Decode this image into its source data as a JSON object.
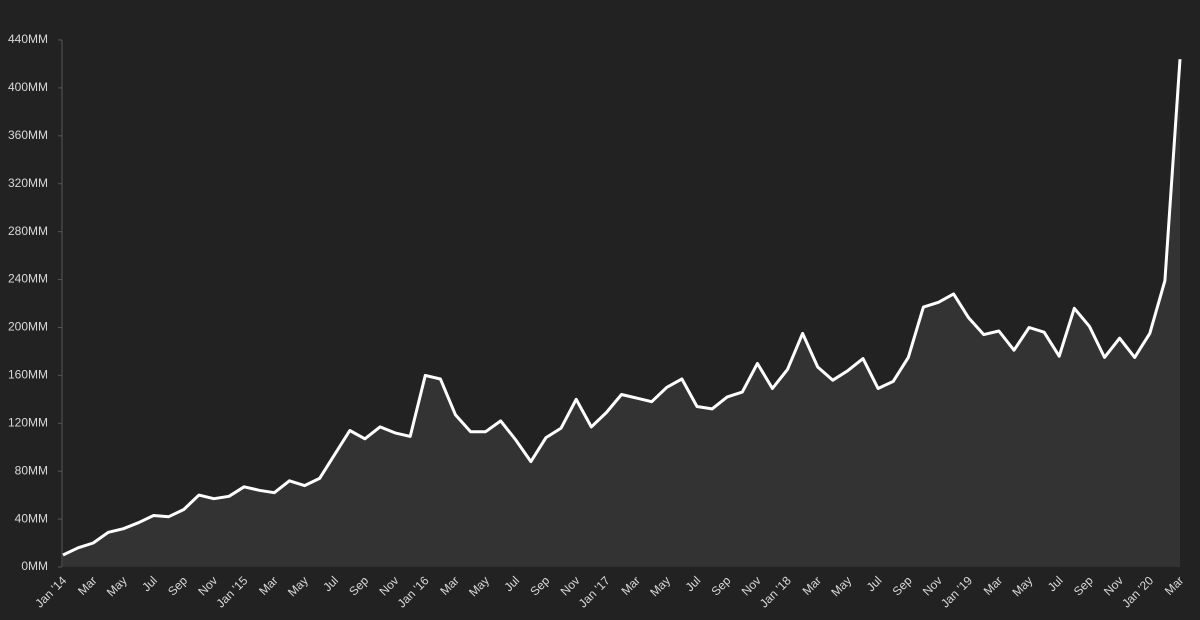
{
  "chart_data": {
    "type": "area",
    "categories": [
      "Jan '14",
      null,
      "Mar",
      null,
      "May",
      null,
      "Jul",
      null,
      "Sep",
      null,
      "Nov",
      null,
      "Jan '15",
      null,
      "Mar",
      null,
      "May",
      null,
      "Jul",
      null,
      "Sep",
      null,
      "Nov",
      null,
      "Jan '16",
      null,
      "Mar",
      null,
      "May",
      null,
      "Jul",
      null,
      "Sep",
      null,
      "Nov",
      null,
      "Jan '17",
      null,
      "Mar",
      null,
      "May",
      null,
      "Jul",
      null,
      "Sep",
      null,
      "Nov",
      null,
      "Jan '18",
      null,
      "Mar",
      null,
      "May",
      null,
      "Jul",
      null,
      "Sep",
      null,
      "Nov",
      null,
      "Jan '19",
      null,
      "Mar",
      null,
      "May",
      null,
      "Jul",
      null,
      "Sep",
      null,
      "Nov",
      null,
      "Jan '20",
      null,
      "Mar"
    ],
    "values": [
      10,
      16,
      20,
      29,
      32,
      37,
      43,
      42,
      48,
      60,
      57,
      59,
      67,
      64,
      62,
      72,
      68,
      74,
      94,
      114,
      107,
      117,
      112,
      109,
      160,
      157,
      127,
      113,
      113,
      122,
      106,
      88,
      108,
      116,
      140,
      117,
      129,
      144,
      141,
      138,
      150,
      157,
      134,
      132,
      142,
      146,
      170,
      149,
      165,
      195,
      167,
      156,
      164,
      174,
      149,
      155,
      175,
      217,
      221,
      228,
      208,
      194,
      197,
      181,
      200,
      196,
      176,
      216,
      201,
      175,
      191,
      175,
      195,
      239,
      424
    ],
    "color": "#ffffff",
    "fill_color": "#333333",
    "ylim": [
      0,
      440
    ],
    "yticks": [
      {
        "value": 0,
        "label": "0MM"
      },
      {
        "value": 40,
        "label": "40MM"
      },
      {
        "value": 80,
        "label": "80MM"
      },
      {
        "value": 120,
        "label": "120MM"
      },
      {
        "value": 160,
        "label": "160MM"
      },
      {
        "value": 200,
        "label": "200MM"
      },
      {
        "value": 240,
        "label": "240MM"
      },
      {
        "value": 280,
        "label": "280MM"
      },
      {
        "value": 320,
        "label": "320MM"
      },
      {
        "value": 360,
        "label": "360MM"
      },
      {
        "value": 400,
        "label": "400MM"
      },
      {
        "value": 440,
        "label": "440MM"
      }
    ],
    "grid": false
  }
}
